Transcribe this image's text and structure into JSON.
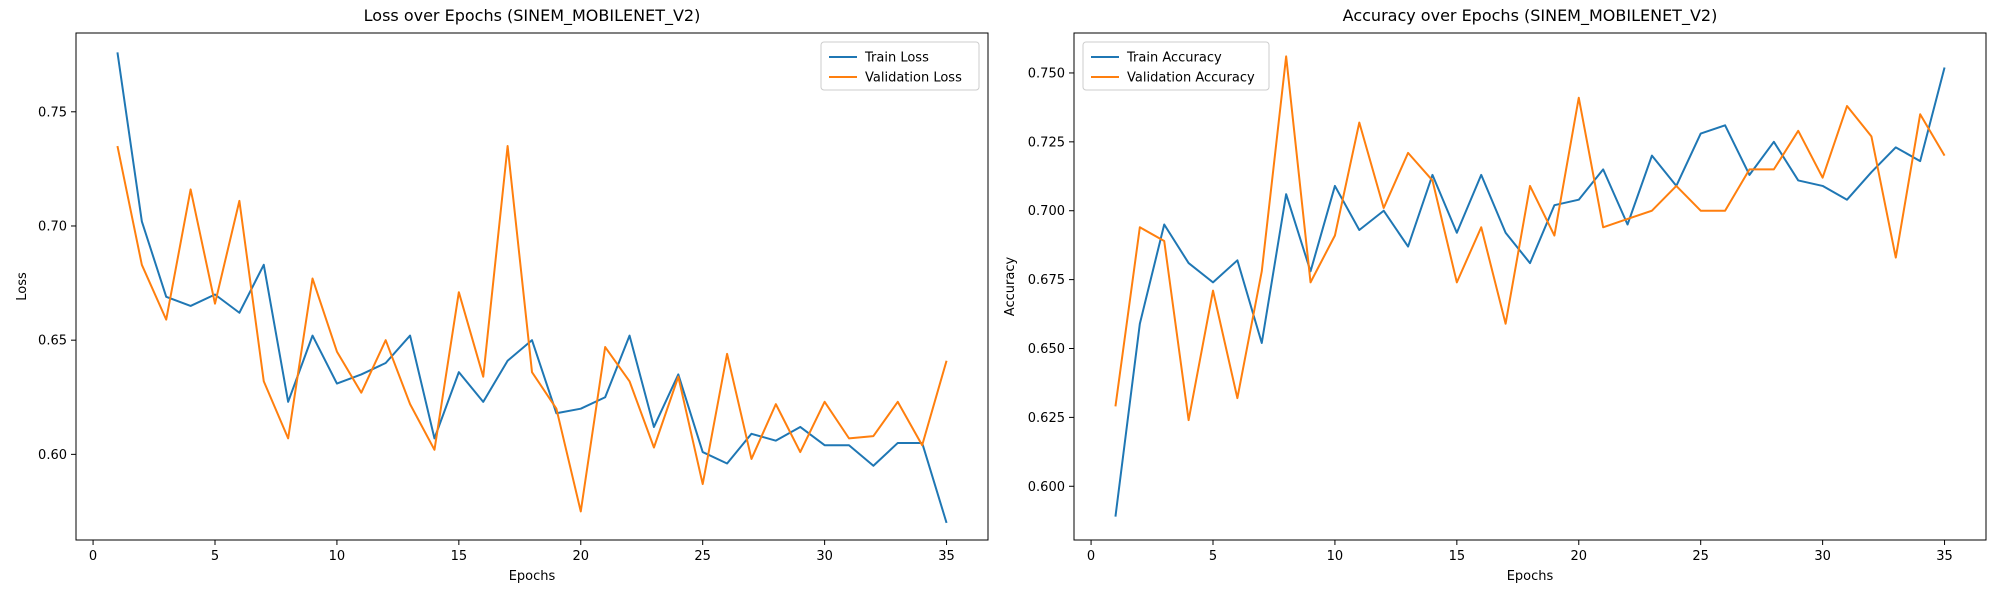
{
  "chart_data": [
    {
      "type": "line",
      "title": "Loss over Epochs (SINEM_MOBILENET_V2)",
      "xlabel": "Epochs",
      "ylabel": "Loss",
      "xlim": [
        -0.7,
        36.7
      ],
      "ylim": [
        0.5625,
        0.7845
      ],
      "xticks": [
        0,
        5,
        10,
        15,
        20,
        25,
        30,
        35
      ],
      "yticks": [
        0.6,
        0.65,
        0.7,
        0.75
      ],
      "grid": false,
      "legend": "top-right",
      "x": [
        1,
        2,
        3,
        4,
        5,
        6,
        7,
        8,
        9,
        10,
        11,
        12,
        13,
        14,
        15,
        16,
        17,
        18,
        19,
        20,
        21,
        22,
        23,
        24,
        25,
        26,
        27,
        28,
        29,
        30,
        31,
        32,
        33,
        34,
        35
      ],
      "series": [
        {
          "name": "Train Loss",
          "color": "#1f77b4",
          "values": [
            0.776,
            0.702,
            0.669,
            0.665,
            0.67,
            0.662,
            0.683,
            0.623,
            0.652,
            0.631,
            0.635,
            0.64,
            0.652,
            0.607,
            0.636,
            0.623,
            0.641,
            0.65,
            0.618,
            0.62,
            0.625,
            0.652,
            0.612,
            0.635,
            0.601,
            0.596,
            0.609,
            0.606,
            0.612,
            0.604,
            0.604,
            0.595,
            0.605,
            0.605,
            0.57
          ]
        },
        {
          "name": "Validation Loss",
          "color": "#ff7f0e",
          "values": [
            0.735,
            0.683,
            0.659,
            0.716,
            0.666,
            0.711,
            0.632,
            0.607,
            0.677,
            0.645,
            0.627,
            0.65,
            0.622,
            0.602,
            0.671,
            0.634,
            0.735,
            0.636,
            0.62,
            0.575,
            0.647,
            0.632,
            0.603,
            0.634,
            0.587,
            0.644,
            0.598,
            0.622,
            0.601,
            0.623,
            0.607,
            0.608,
            0.623,
            0.604,
            0.641
          ]
        }
      ]
    },
    {
      "type": "line",
      "title": "Accuracy over Epochs (SINEM_MOBILENET_V2)",
      "xlabel": "Epochs",
      "ylabel": "Accuracy",
      "xlim": [
        -0.7,
        36.7
      ],
      "ylim": [
        0.5805,
        0.7645
      ],
      "xticks": [
        0,
        5,
        10,
        15,
        20,
        25,
        30,
        35
      ],
      "yticks": [
        0.6,
        0.625,
        0.65,
        0.675,
        0.7,
        0.725,
        0.75
      ],
      "grid": false,
      "legend": "top-left",
      "x": [
        1,
        2,
        3,
        4,
        5,
        6,
        7,
        8,
        9,
        10,
        11,
        12,
        13,
        14,
        15,
        16,
        17,
        18,
        19,
        20,
        21,
        22,
        23,
        24,
        25,
        26,
        27,
        28,
        29,
        30,
        31,
        32,
        33,
        34,
        35
      ],
      "series": [
        {
          "name": "Train Accuracy",
          "color": "#1f77b4",
          "values": [
            0.589,
            0.659,
            0.695,
            0.681,
            0.674,
            0.682,
            0.652,
            0.706,
            0.678,
            0.709,
            0.693,
            0.7,
            0.687,
            0.713,
            0.692,
            0.713,
            0.692,
            0.681,
            0.702,
            0.704,
            0.715,
            0.695,
            0.72,
            0.709,
            0.728,
            0.731,
            0.713,
            0.725,
            0.711,
            0.709,
            0.704,
            0.714,
            0.723,
            0.718,
            0.752
          ]
        },
        {
          "name": "Validation Accuracy",
          "color": "#ff7f0e",
          "values": [
            0.629,
            0.694,
            0.689,
            0.624,
            0.671,
            0.632,
            0.678,
            0.756,
            0.674,
            0.691,
            0.732,
            0.701,
            0.721,
            0.711,
            0.674,
            0.694,
            0.659,
            0.709,
            0.691,
            0.741,
            0.694,
            0.697,
            0.7,
            0.709,
            0.7,
            0.7,
            0.715,
            0.715,
            0.729,
            0.712,
            0.738,
            0.727,
            0.683,
            0.735,
            0.72
          ]
        }
      ]
    }
  ]
}
